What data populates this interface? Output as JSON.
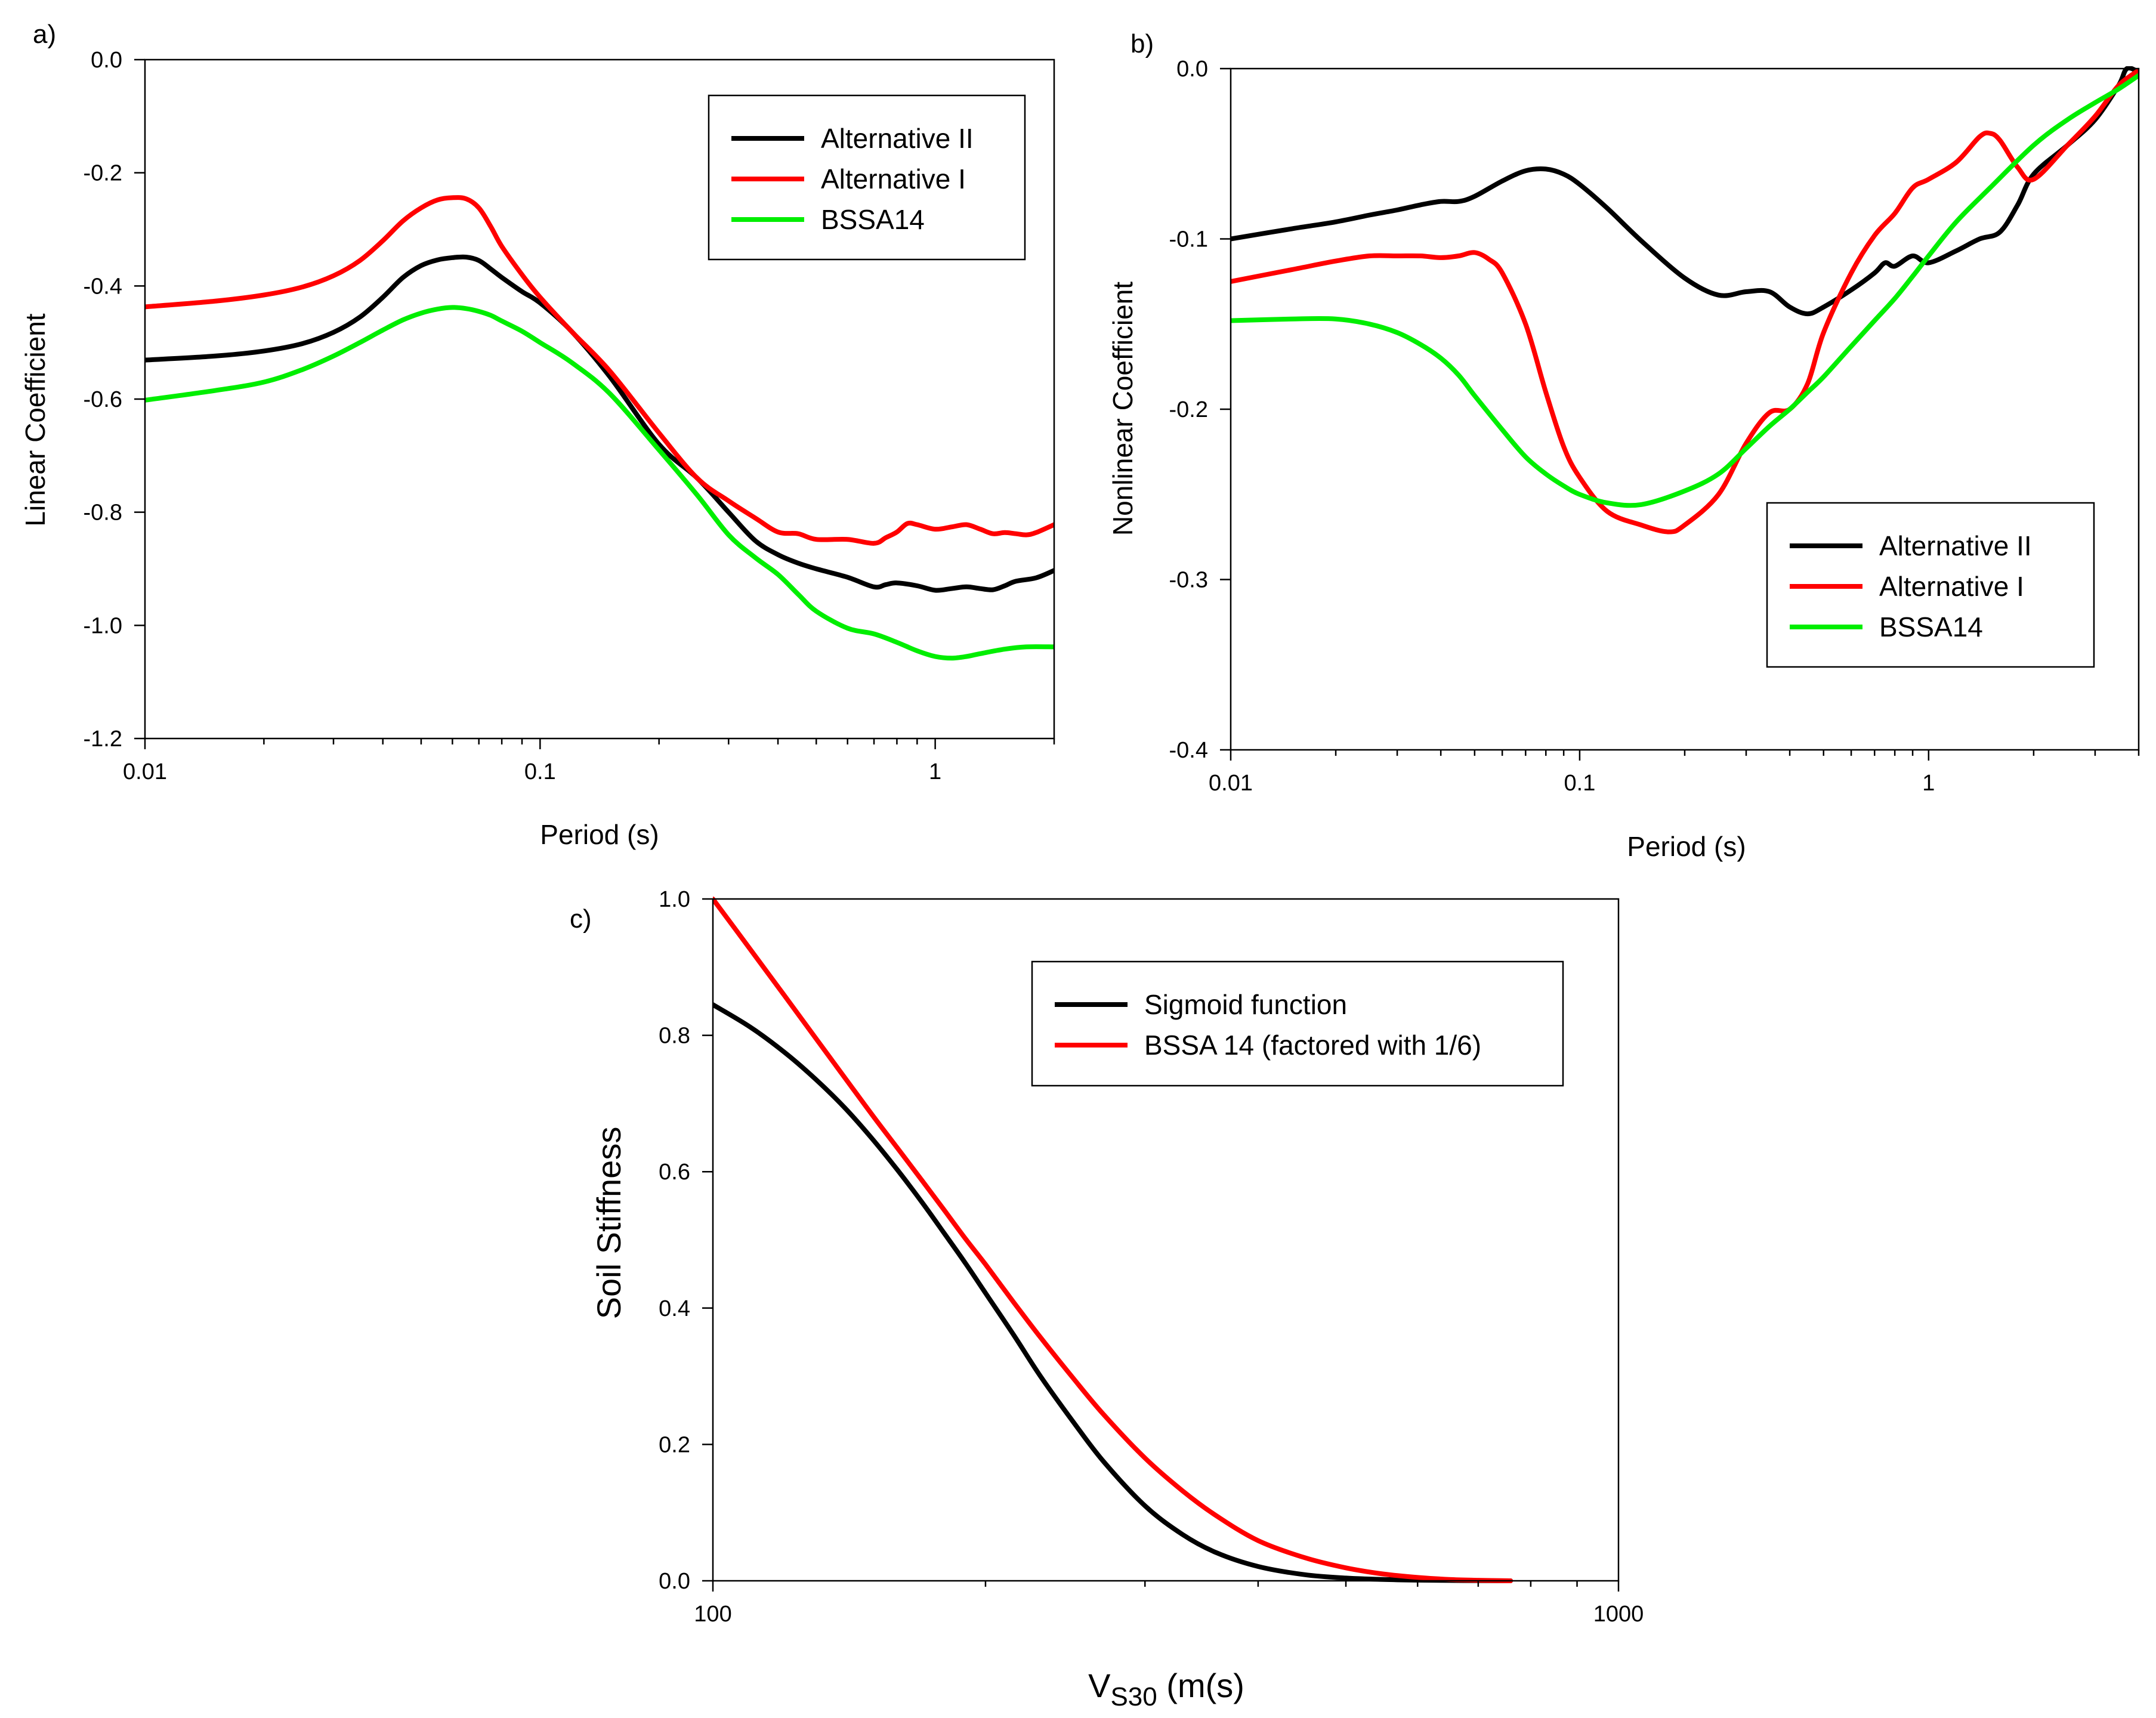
{
  "chart_data": [
    {
      "panel_label": "a)",
      "type": "line",
      "xlabel": "Period (s)",
      "ylabel": "Linear Coefficient",
      "xscale": "log",
      "xlim": [
        0.01,
        2.0
      ],
      "ylim": [
        -1.2,
        0.0
      ],
      "xticks": [
        "0.01",
        "0.1",
        "1"
      ],
      "xtick_values": [
        0.01,
        0.1,
        1
      ],
      "yticks": [
        "0.0",
        "-0.2",
        "-0.4",
        "-0.6",
        "-0.8",
        "-1.0",
        "-1.2"
      ],
      "ytick_values": [
        0.0,
        -0.2,
        -0.4,
        -0.6,
        -0.8,
        -1.0,
        -1.2
      ],
      "grid": false,
      "legend_position": "top-right",
      "series": [
        {
          "name": "Alternative II",
          "color": "#000000",
          "x": [
            0.01,
            0.015,
            0.02,
            0.025,
            0.03,
            0.035,
            0.04,
            0.045,
            0.05,
            0.055,
            0.06,
            0.065,
            0.07,
            0.075,
            0.08,
            0.09,
            0.1,
            0.12,
            0.15,
            0.2,
            0.25,
            0.3,
            0.35,
            0.4,
            0.45,
            0.5,
            0.6,
            0.7,
            0.75,
            0.8,
            0.9,
            1.0,
            1.1,
            1.2,
            1.3,
            1.4,
            1.5,
            1.6,
            1.8,
            2.0
          ],
          "y": [
            -0.531,
            -0.524,
            -0.515,
            -0.502,
            -0.482,
            -0.455,
            -0.42,
            -0.385,
            -0.364,
            -0.354,
            -0.35,
            -0.349,
            -0.355,
            -0.37,
            -0.385,
            -0.41,
            -0.43,
            -0.48,
            -0.56,
            -0.68,
            -0.74,
            -0.8,
            -0.85,
            -0.875,
            -0.89,
            -0.9,
            -0.915,
            -0.932,
            -0.928,
            -0.925,
            -0.93,
            -0.938,
            -0.935,
            -0.932,
            -0.935,
            -0.937,
            -0.93,
            -0.922,
            -0.916,
            -0.903
          ]
        },
        {
          "name": "Alternative I",
          "color": "#ff0000",
          "x": [
            0.01,
            0.015,
            0.02,
            0.025,
            0.03,
            0.035,
            0.04,
            0.045,
            0.05,
            0.055,
            0.06,
            0.065,
            0.07,
            0.075,
            0.08,
            0.09,
            0.1,
            0.12,
            0.15,
            0.2,
            0.25,
            0.3,
            0.35,
            0.4,
            0.45,
            0.5,
            0.6,
            0.7,
            0.75,
            0.8,
            0.85,
            0.9,
            1.0,
            1.1,
            1.2,
            1.3,
            1.4,
            1.5,
            1.6,
            1.7,
            1.8,
            2.0
          ],
          "y": [
            -0.437,
            -0.427,
            -0.416,
            -0.402,
            -0.382,
            -0.355,
            -0.32,
            -0.285,
            -0.262,
            -0.248,
            -0.244,
            -0.246,
            -0.262,
            -0.295,
            -0.33,
            -0.38,
            -0.42,
            -0.48,
            -0.55,
            -0.66,
            -0.74,
            -0.78,
            -0.81,
            -0.835,
            -0.838,
            -0.848,
            -0.848,
            -0.855,
            -0.845,
            -0.835,
            -0.82,
            -0.822,
            -0.83,
            -0.826,
            -0.822,
            -0.83,
            -0.838,
            -0.836,
            -0.838,
            -0.84,
            -0.836,
            -0.822
          ]
        },
        {
          "name": "BSSA14",
          "color": "#00ee00",
          "x": [
            0.01,
            0.015,
            0.02,
            0.025,
            0.03,
            0.035,
            0.04,
            0.045,
            0.05,
            0.055,
            0.06,
            0.065,
            0.07,
            0.075,
            0.08,
            0.09,
            0.1,
            0.12,
            0.15,
            0.2,
            0.25,
            0.3,
            0.35,
            0.4,
            0.45,
            0.5,
            0.6,
            0.7,
            0.8,
            0.9,
            1.0,
            1.1,
            1.2,
            1.3,
            1.5,
            1.7,
            2.0
          ],
          "y": [
            -0.602,
            -0.585,
            -0.57,
            -0.548,
            -0.524,
            -0.5,
            -0.478,
            -0.46,
            -0.448,
            -0.441,
            -0.438,
            -0.44,
            -0.445,
            -0.452,
            -0.462,
            -0.48,
            -0.5,
            -0.535,
            -0.59,
            -0.69,
            -0.77,
            -0.84,
            -0.88,
            -0.91,
            -0.945,
            -0.975,
            -1.005,
            -1.015,
            -1.03,
            -1.045,
            -1.055,
            -1.058,
            -1.055,
            -1.05,
            -1.042,
            -1.038,
            -1.038
          ]
        }
      ]
    },
    {
      "panel_label": "b)",
      "type": "line",
      "xlabel": "Period (s)",
      "ylabel": "Nonlinear Coefficient",
      "xscale": "log",
      "xlim": [
        0.01,
        4.0
      ],
      "ylim": [
        -0.4,
        0.0
      ],
      "xticks": [
        "0.01",
        "0.1",
        "1"
      ],
      "xtick_values": [
        0.01,
        0.1,
        1
      ],
      "yticks": [
        "0.0",
        "-0.1",
        "-0.2",
        "-0.3",
        "-0.4"
      ],
      "ytick_values": [
        0.0,
        -0.1,
        -0.2,
        -0.3,
        -0.4
      ],
      "grid": false,
      "legend_position": "bottom-right",
      "series": [
        {
          "name": "Alternative II",
          "color": "#000000",
          "x": [
            0.01,
            0.015,
            0.02,
            0.025,
            0.03,
            0.035,
            0.04,
            0.045,
            0.05,
            0.06,
            0.07,
            0.08,
            0.09,
            0.1,
            0.12,
            0.15,
            0.2,
            0.25,
            0.3,
            0.35,
            0.4,
            0.45,
            0.5,
            0.6,
            0.7,
            0.75,
            0.8,
            0.9,
            1.0,
            1.2,
            1.4,
            1.6,
            1.8,
            2.0,
            2.5,
            3.0,
            3.5,
            3.7,
            4.0
          ],
          "y": [
            -0.1,
            -0.094,
            -0.09,
            -0.086,
            -0.083,
            -0.08,
            -0.078,
            -0.078,
            -0.075,
            -0.066,
            -0.06,
            -0.059,
            -0.062,
            -0.068,
            -0.082,
            -0.101,
            -0.123,
            -0.133,
            -0.131,
            -0.131,
            -0.14,
            -0.144,
            -0.14,
            -0.13,
            -0.12,
            -0.114,
            -0.116,
            -0.11,
            -0.114,
            -0.107,
            -0.1,
            -0.096,
            -0.08,
            -0.062,
            -0.045,
            -0.03,
            -0.01,
            0.0,
            -0.002
          ]
        },
        {
          "name": "Alternative I",
          "color": "#ff0000",
          "x": [
            0.01,
            0.015,
            0.02,
            0.025,
            0.03,
            0.035,
            0.04,
            0.045,
            0.05,
            0.055,
            0.06,
            0.07,
            0.08,
            0.09,
            0.1,
            0.12,
            0.15,
            0.18,
            0.2,
            0.25,
            0.3,
            0.35,
            0.4,
            0.45,
            0.5,
            0.6,
            0.7,
            0.8,
            0.9,
            1.0,
            1.2,
            1.4,
            1.5,
            1.6,
            1.8,
            2.0,
            2.5,
            3.0,
            3.5,
            4.0
          ],
          "y": [
            -0.125,
            -0.118,
            -0.113,
            -0.11,
            -0.11,
            -0.11,
            -0.111,
            -0.11,
            -0.108,
            -0.112,
            -0.12,
            -0.15,
            -0.19,
            -0.222,
            -0.24,
            -0.26,
            -0.268,
            -0.272,
            -0.268,
            -0.25,
            -0.22,
            -0.202,
            -0.2,
            -0.185,
            -0.155,
            -0.12,
            -0.098,
            -0.085,
            -0.07,
            -0.065,
            -0.055,
            -0.04,
            -0.038,
            -0.042,
            -0.058,
            -0.065,
            -0.045,
            -0.028,
            -0.01,
            -0.001
          ]
        },
        {
          "name": "BSSA14",
          "color": "#00ee00",
          "x": [
            0.01,
            0.015,
            0.02,
            0.025,
            0.03,
            0.035,
            0.04,
            0.045,
            0.05,
            0.06,
            0.07,
            0.08,
            0.09,
            0.1,
            0.12,
            0.15,
            0.2,
            0.25,
            0.3,
            0.35,
            0.4,
            0.45,
            0.5,
            0.6,
            0.7,
            0.8,
            0.9,
            1.0,
            1.2,
            1.5,
            2.0,
            2.5,
            3.0,
            3.5,
            4.0
          ],
          "y": [
            -0.148,
            -0.147,
            -0.147,
            -0.15,
            -0.155,
            -0.162,
            -0.17,
            -0.18,
            -0.192,
            -0.212,
            -0.228,
            -0.238,
            -0.245,
            -0.25,
            -0.255,
            -0.256,
            -0.248,
            -0.238,
            -0.223,
            -0.21,
            -0.2,
            -0.19,
            -0.181,
            -0.163,
            -0.148,
            -0.135,
            -0.122,
            -0.11,
            -0.09,
            -0.07,
            -0.045,
            -0.03,
            -0.02,
            -0.012,
            -0.004
          ]
        }
      ]
    },
    {
      "panel_label": "c)",
      "type": "line",
      "xlabel": "V",
      "xlabel_subscript": "S30",
      "xlabel_unit": " (m(s)",
      "ylabel": "Soil Stiffness",
      "xscale": "log",
      "xlim": [
        100,
        1000
      ],
      "ylim": [
        0.0,
        1.0
      ],
      "xticks": [
        "100",
        "1000"
      ],
      "xtick_values": [
        100,
        1000
      ],
      "yticks": [
        "0.0",
        "0.2",
        "0.4",
        "0.6",
        "0.8",
        "1.0"
      ],
      "ytick_values": [
        0.0,
        0.2,
        0.4,
        0.6,
        0.8,
        1.0
      ],
      "grid": false,
      "legend_position": "top-right",
      "series": [
        {
          "name": "Sigmoid function",
          "color": "#000000",
          "x": [
            100,
            110,
            120,
            130,
            140,
            150,
            160,
            170,
            180,
            190,
            200,
            215,
            230,
            250,
            270,
            300,
            330,
            360,
            400,
            450,
            500,
            550,
            600,
            650,
            700,
            760
          ],
          "y": [
            0.845,
            0.812,
            0.775,
            0.735,
            0.693,
            0.648,
            0.602,
            0.556,
            0.51,
            0.466,
            0.422,
            0.36,
            0.3,
            0.233,
            0.175,
            0.11,
            0.068,
            0.041,
            0.021,
            0.009,
            0.004,
            0.002,
            0.001,
            0.0005,
            0.0002,
            0.0
          ]
        },
        {
          "name": "BSSA 14 (factored with 1/6)",
          "color": "#ff0000",
          "x": [
            100,
            110,
            120,
            130,
            140,
            150,
            160,
            170,
            180,
            190,
            200,
            215,
            230,
            250,
            270,
            300,
            330,
            360,
            400,
            450,
            500,
            550,
            600,
            650,
            700,
            760
          ],
          "y": [
            1.0,
            0.926,
            0.858,
            0.795,
            0.737,
            0.683,
            0.634,
            0.588,
            0.544,
            0.502,
            0.464,
            0.408,
            0.357,
            0.297,
            0.244,
            0.18,
            0.132,
            0.095,
            0.059,
            0.034,
            0.019,
            0.01,
            0.005,
            0.002,
            0.0008,
            0.0
          ]
        }
      ]
    }
  ]
}
